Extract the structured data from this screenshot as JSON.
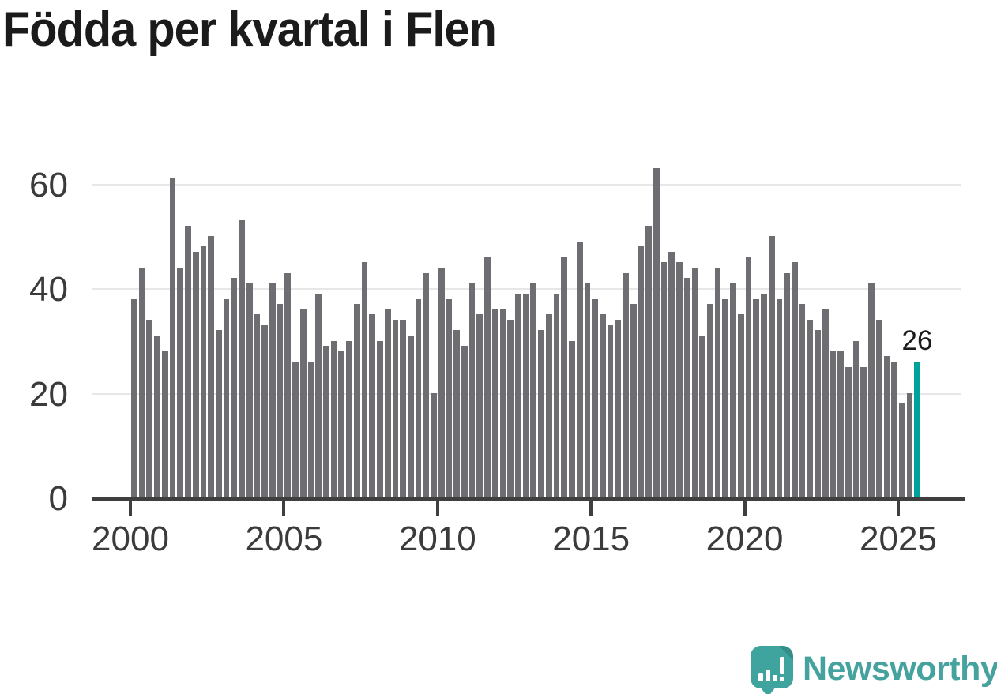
{
  "title": "Födda per kvartal i Flen",
  "annotation": {
    "value_label": "26"
  },
  "branding": {
    "name": "Newsworthy",
    "icon": "newsworthy-speech-bubble-chart-icon",
    "teal": "#3fa39e",
    "text_color": "#45a29e"
  },
  "colors": {
    "bar": "#6e6d72",
    "highlight": "#00a39a",
    "axis": "#3f3f3f",
    "grid": "#e7e7e7",
    "title_text": "#1b1b1b",
    "axis_text": "#3b3b3b"
  },
  "chart_data": {
    "type": "bar",
    "title": "Födda per kvartal i Flen",
    "x_unit": "quarter",
    "start_period": "2000-Q1",
    "end_period": "2025-Q3",
    "x_tick_labels": [
      "2000",
      "2005",
      "2010",
      "2015",
      "2020",
      "2025"
    ],
    "y_tick_labels": [
      "0",
      "20",
      "40",
      "60"
    ],
    "ylim": [
      0,
      66
    ],
    "grid": "horizontal",
    "legend": "none",
    "highlight_last": true,
    "highlight_value": 26,
    "values": [
      38,
      44,
      34,
      31,
      28,
      61,
      44,
      52,
      47,
      48,
      50,
      32,
      38,
      42,
      53,
      41,
      35,
      33,
      41,
      37,
      43,
      26,
      36,
      26,
      39,
      29,
      30,
      28,
      30,
      37,
      45,
      35,
      30,
      36,
      34,
      34,
      31,
      38,
      43,
      20,
      44,
      38,
      32,
      29,
      41,
      35,
      46,
      36,
      36,
      34,
      39,
      39,
      41,
      32,
      35,
      39,
      46,
      30,
      49,
      41,
      38,
      35,
      33,
      34,
      43,
      37,
      48,
      52,
      63,
      45,
      47,
      45,
      42,
      44,
      31,
      37,
      44,
      38,
      41,
      35,
      46,
      38,
      39,
      50,
      38,
      43,
      45,
      37,
      34,
      32,
      36,
      28,
      28,
      25,
      30,
      25,
      41,
      34,
      27,
      26,
      18,
      20,
      26
    ]
  }
}
